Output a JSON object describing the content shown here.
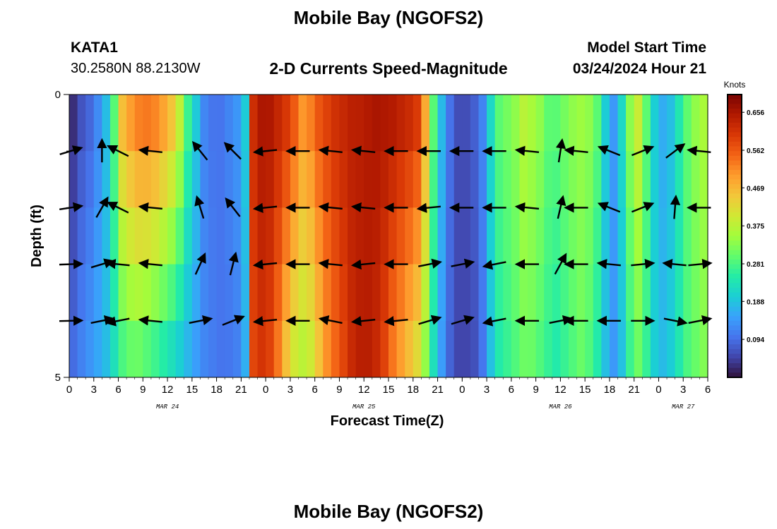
{
  "header": {
    "title": "Mobile Bay (NGOFS2)",
    "station_id": "KATA1",
    "station_coords": "30.2580N  88.2130W",
    "subtitle": "2-D Currents Speed-Magnitude",
    "model_start_label": "Model Start Time",
    "model_start_value": "03/24/2024 Hour 21"
  },
  "footer": {
    "title_repeat": "Mobile Bay (NGOFS2)"
  },
  "chart_data": {
    "type": "heatmap",
    "title": "2-D Currents Speed-Magnitude",
    "xlabel": "Forecast Time(Z)",
    "ylabel": "Depth (ft)",
    "y_ticks": [
      "0",
      "5"
    ],
    "ylim": [
      0,
      5
    ],
    "x_hours_range": [
      0,
      78
    ],
    "x_tick_labels": [
      "0",
      "3",
      "6",
      "9",
      "12",
      "15",
      "18",
      "21",
      "0",
      "3",
      "6",
      "9",
      "12",
      "15",
      "18",
      "21",
      "0",
      "3",
      "6",
      "9",
      "12",
      "15",
      "18",
      "21",
      "0",
      "3",
      "6"
    ],
    "date_labels": [
      {
        "label": "MAR 24",
        "hour": 12
      },
      {
        "label": "MAR 25",
        "hour": 36
      },
      {
        "label": "MAR 26",
        "hour": 60
      },
      {
        "label": "MAR 27",
        "hour": 75
      }
    ],
    "colorbar": {
      "unit": "Knots",
      "min": 0.0,
      "max": 0.7,
      "ticks": [
        "0.656",
        "0.562",
        "0.469",
        "0.375",
        "0.281",
        "0.188",
        "0.094"
      ],
      "colors": [
        "#30123b",
        "#4145ab",
        "#4675ed",
        "#39a2fc",
        "#1bcfd4",
        "#24eca6",
        "#61fc6c",
        "#a4fc3b",
        "#d1e834",
        "#f3c63a",
        "#fe9b2d",
        "#f36315",
        "#d93806",
        "#b11901",
        "#7a0402"
      ]
    },
    "depth_bands_ft": [
      0,
      1,
      2,
      3,
      4,
      5
    ],
    "times_hr": [
      0,
      1,
      2,
      3,
      4,
      5,
      6,
      7,
      8,
      9,
      10,
      11,
      12,
      13,
      14,
      15,
      16,
      17,
      18,
      19,
      20,
      21,
      22,
      23,
      24,
      25,
      26,
      27,
      28,
      29,
      30,
      31,
      32,
      33,
      34,
      35,
      36,
      37,
      38,
      39,
      40,
      41,
      42,
      43,
      44,
      45,
      46,
      47,
      48,
      49,
      50,
      51,
      52,
      53,
      54,
      55,
      56,
      57,
      58,
      59,
      60,
      61,
      62,
      63,
      64,
      65,
      66,
      67,
      68,
      69,
      70,
      71,
      72,
      73,
      74,
      75,
      76,
      77
    ],
    "speed_knots_surface": [
      0.02,
      0.06,
      0.08,
      0.12,
      0.18,
      0.3,
      0.48,
      0.52,
      0.55,
      0.56,
      0.55,
      0.52,
      0.48,
      0.4,
      0.28,
      0.2,
      0.12,
      0.1,
      0.1,
      0.12,
      0.14,
      0.2,
      0.62,
      0.66,
      0.66,
      0.64,
      0.62,
      0.58,
      0.52,
      0.54,
      0.58,
      0.6,
      0.62,
      0.63,
      0.64,
      0.64,
      0.65,
      0.66,
      0.66,
      0.66,
      0.65,
      0.64,
      0.62,
      0.5,
      0.3,
      0.18,
      0.1,
      0.06,
      0.06,
      0.08,
      0.12,
      0.22,
      0.3,
      0.32,
      0.34,
      0.38,
      0.36,
      0.34,
      0.3,
      0.3,
      0.32,
      0.34,
      0.35,
      0.34,
      0.3,
      0.2,
      0.14,
      0.22,
      0.34,
      0.4,
      0.3,
      0.2,
      0.16,
      0.18,
      0.24,
      0.3,
      0.34,
      0.36
    ],
    "speed_knots_bottom": [
      0.1,
      0.12,
      0.14,
      0.16,
      0.18,
      0.22,
      0.26,
      0.28,
      0.28,
      0.26,
      0.24,
      0.22,
      0.2,
      0.18,
      0.16,
      0.14,
      0.12,
      0.11,
      0.1,
      0.1,
      0.11,
      0.16,
      0.58,
      0.6,
      0.58,
      0.52,
      0.44,
      0.38,
      0.36,
      0.38,
      0.44,
      0.5,
      0.54,
      0.58,
      0.62,
      0.64,
      0.64,
      0.62,
      0.58,
      0.52,
      0.48,
      0.44,
      0.4,
      0.32,
      0.22,
      0.14,
      0.08,
      0.05,
      0.05,
      0.06,
      0.1,
      0.18,
      0.24,
      0.26,
      0.28,
      0.3,
      0.3,
      0.28,
      0.26,
      0.24,
      0.26,
      0.28,
      0.3,
      0.28,
      0.24,
      0.18,
      0.14,
      0.18,
      0.26,
      0.3,
      0.26,
      0.2,
      0.18,
      0.2,
      0.24,
      0.28,
      0.3,
      0.32
    ],
    "vector_times_hr": [
      0,
      4,
      6,
      10,
      16,
      20,
      24,
      28,
      32,
      36,
      40,
      44,
      48,
      52,
      56,
      60,
      62,
      66,
      70,
      74,
      77
    ],
    "vector_depths_ft": [
      1,
      2,
      3,
      4
    ],
    "vectors": [
      [
        [
          1,
          0.3
        ],
        [
          2,
          0.3
        ],
        [
          3,
          0.1
        ],
        [
          4,
          0.1
        ]
      ],
      [
        [
          0,
          1.2
        ],
        [
          0.8,
          1.4
        ],
        [
          1,
          0.3
        ],
        [
          2,
          0.4
        ]
      ],
      [
        [
          -1,
          0.5
        ],
        [
          -1,
          0.5
        ],
        [
          -1,
          0.1
        ],
        [
          -1,
          -0.2
        ]
      ],
      [
        [
          -1,
          0.1
        ],
        [
          -1,
          0.1
        ],
        [
          -1,
          0.1
        ],
        [
          -1,
          0.1
        ]
      ],
      [
        [
          -0.8,
          1.0
        ],
        [
          -0.4,
          1.3
        ],
        [
          0.5,
          1.1
        ],
        [
          1,
          0.2
        ]
      ],
      [
        [
          -0.9,
          0.9
        ],
        [
          -0.7,
          0.9
        ],
        [
          0.3,
          1.2
        ],
        [
          1,
          0.4
        ]
      ],
      [
        [
          -1,
          -0.1
        ],
        [
          -1,
          -0.1
        ],
        [
          -1,
          -0.1
        ],
        [
          -1,
          -0.1
        ]
      ],
      [
        [
          -1,
          0
        ],
        [
          -1,
          0
        ],
        [
          -1,
          0
        ],
        [
          -1,
          0
        ]
      ],
      [
        [
          -1,
          0.1
        ],
        [
          -1,
          0.1
        ],
        [
          -1,
          0.1
        ],
        [
          -1,
          0.2
        ]
      ],
      [
        [
          -1,
          0.1
        ],
        [
          -1,
          0.1
        ],
        [
          -1,
          -0.1
        ],
        [
          -1,
          -0.1
        ]
      ],
      [
        [
          -1,
          0
        ],
        [
          -1,
          0
        ],
        [
          -1,
          0
        ],
        [
          -1,
          -0.1
        ]
      ],
      [
        [
          -1,
          0
        ],
        [
          -1,
          -0.1
        ],
        [
          1,
          0.2
        ],
        [
          1,
          0.3
        ]
      ],
      [
        [
          -1,
          0
        ],
        [
          -1,
          0
        ],
        [
          1,
          0.2
        ],
        [
          1,
          0.3
        ]
      ],
      [
        [
          -1,
          0
        ],
        [
          -1,
          0
        ],
        [
          -1,
          -0.2
        ],
        [
          -1,
          -0.2
        ]
      ],
      [
        [
          -1,
          0.1
        ],
        [
          -1,
          0.1
        ],
        [
          -1,
          0
        ],
        [
          -1,
          0
        ]
      ],
      [
        [
          0.2,
          1.3
        ],
        [
          0.3,
          1.3
        ],
        [
          0.6,
          1.1
        ],
        [
          1,
          0.2
        ]
      ],
      [
        [
          -1,
          0.1
        ],
        [
          -1,
          0
        ],
        [
          -1,
          0
        ],
        [
          -1,
          0
        ]
      ],
      [
        [
          -1,
          0.4
        ],
        [
          -1,
          0.4
        ],
        [
          -1,
          0.1
        ],
        [
          -1,
          0
        ]
      ],
      [
        [
          1,
          0.4
        ],
        [
          1,
          0.4
        ],
        [
          1,
          0.1
        ],
        [
          1,
          0
        ]
      ],
      [
        [
          0.8,
          0.6
        ],
        [
          0.1,
          1.3
        ],
        [
          -1,
          0.1
        ],
        [
          1,
          -0.2
        ]
      ],
      [
        [
          -1,
          0.1
        ],
        [
          -1,
          0
        ],
        [
          1,
          0.1
        ],
        [
          1,
          0.2
        ]
      ]
    ]
  }
}
